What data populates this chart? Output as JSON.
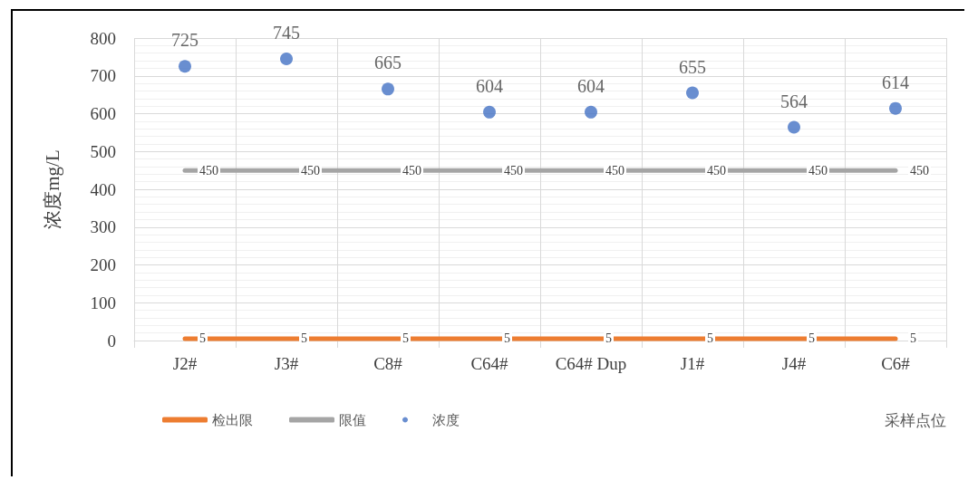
{
  "chart_data": {
    "type": "scatter",
    "ylabel": "浓度mg/L",
    "xlabel": "采样点位",
    "categories": [
      "J2#",
      "J3#",
      "C8#",
      "C64#",
      "C64# Dup",
      "J1#",
      "J4#",
      "C6#"
    ],
    "series": [
      {
        "name": "检出限",
        "type": "line",
        "marker": "none",
        "color": "#ed7d31",
        "values": [
          5,
          5,
          5,
          5,
          5,
          5,
          5,
          5
        ]
      },
      {
        "name": "限值",
        "type": "line",
        "marker": "none",
        "color": "#a5a5a5",
        "values": [
          450,
          450,
          450,
          450,
          450,
          450,
          450,
          450
        ]
      },
      {
        "name": "浓度",
        "color": "#4472c4",
        "values": [
          725,
          745,
          665,
          604,
          604,
          655,
          564,
          614
        ]
      }
    ],
    "ylim": [
      0,
      800
    ],
    "yticks": [
      0,
      100,
      200,
      300,
      400,
      500,
      600,
      700,
      800
    ],
    "grid": true,
    "legend": "bottom left",
    "data_labels": true,
    "marker": "circle"
  }
}
